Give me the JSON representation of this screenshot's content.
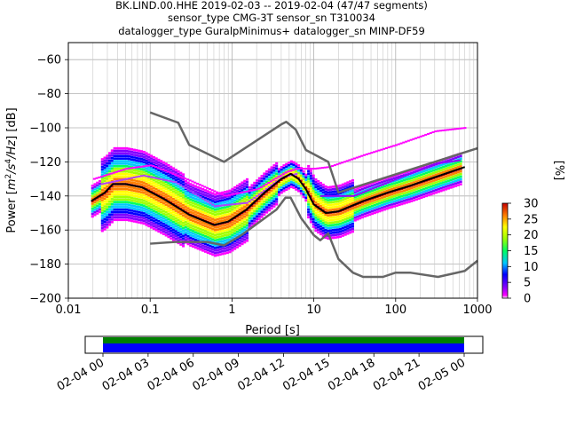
{
  "chart_data": [
    {
      "type": "heatmap",
      "title_lines": [
        "BK.LIND.00.HHE   2019-02-03 -- 2019-02-04  (47/47 segments)",
        "sensor_type CMG-3T sensor_sn T310034",
        "datalogger_type GuralpMinimus+ datalogger_sn MINP-DF59"
      ],
      "xlabel": "Period [s]",
      "ylabel_parts": [
        "Power [",
        "m",
        "2",
        "/s",
        "4",
        "/Hz",
        "] [dB]"
      ],
      "x_scale": "log",
      "xlim": [
        0.01,
        1000
      ],
      "ylim": [
        -200,
        -50
      ],
      "x_ticks": [
        0.01,
        0.1,
        1,
        10,
        100,
        1000
      ],
      "x_tick_labels": [
        "0.01",
        "0.1",
        "1",
        "10",
        "100",
        "1000"
      ],
      "y_ticks": [
        -60,
        -80,
        -100,
        -120,
        -140,
        -160,
        -180,
        -200
      ],
      "y_tick_labels": [
        "−60",
        "−80",
        "−100",
        "−120",
        "−140",
        "−160",
        "−180",
        "−200"
      ],
      "grid": true,
      "series": [
        {
          "color": "#666666",
          "points": [
            [
              0.1,
              -91
            ],
            [
              0.22,
              -97
            ],
            [
              0.3,
              -110
            ],
            [
              0.8,
              -120
            ],
            [
              4,
              -98
            ],
            [
              4.6,
              -96.5
            ],
            [
              6,
              -101
            ],
            [
              8,
              -113
            ],
            [
              15,
              -120
            ],
            [
              20,
              -138
            ],
            [
              1000,
              -112
            ]
          ]
        },
        {
          "color": "#666666",
          "points": [
            [
              0.1,
              -168
            ],
            [
              0.2,
              -167
            ],
            [
              0.5,
              -167
            ],
            [
              0.8,
              -169
            ],
            [
              1.3,
              -163
            ],
            [
              3.5,
              -148
            ],
            [
              4.5,
              -141
            ],
            [
              5.2,
              -141
            ],
            [
              7,
              -153
            ],
            [
              10,
              -163
            ],
            [
              12,
              -166
            ],
            [
              15,
              -162
            ],
            [
              20,
              -177
            ],
            [
              30,
              -185
            ],
            [
              40,
              -187.5
            ],
            [
              70,
              -187.5
            ],
            [
              100,
              -185
            ],
            [
              150,
              -185
            ],
            [
              330,
              -187.5
            ],
            [
              700,
              -184
            ],
            [
              1000,
              -178
            ]
          ]
        },
        {
          "color": "#000000",
          "points": [
            [
              0.019,
              -143
            ],
            [
              0.028,
              -138
            ],
            [
              0.035,
              -133
            ],
            [
              0.05,
              -133
            ],
            [
              0.08,
              -135
            ],
            [
              0.15,
              -142
            ],
            [
              0.3,
              -151
            ],
            [
              0.6,
              -157
            ],
            [
              0.9,
              -155
            ],
            [
              1.5,
              -148
            ],
            [
              2.5,
              -138
            ],
            [
              4,
              -130
            ],
            [
              5.2,
              -127
            ],
            [
              6.5,
              -130
            ],
            [
              8,
              -136
            ],
            [
              10,
              -145
            ],
            [
              14,
              -150
            ],
            [
              20,
              -149
            ],
            [
              40,
              -143
            ],
            [
              80,
              -138
            ],
            [
              150,
              -134
            ],
            [
              300,
              -129
            ],
            [
              700,
              -123
            ]
          ]
        }
      ],
      "colorbar": {
        "label": "[%]",
        "range": [
          0,
          30
        ],
        "ticks": [
          "0",
          "5",
          "10",
          "15",
          "20",
          "25",
          "30"
        ]
      }
    },
    {
      "type": "timeline",
      "x_tick_labels": [
        "02-04 00",
        "02-04 03",
        "02-04 06",
        "02-04 09",
        "02-04 12",
        "02-04 15",
        "02-04 18",
        "02-04 21",
        "02-05 00"
      ],
      "bars": [
        {
          "color": "#008000",
          "start": "02-04 00",
          "end": "02-05 00"
        },
        {
          "color": "#0000ff",
          "start": "02-04 00",
          "end": "02-05 00"
        }
      ]
    }
  ]
}
